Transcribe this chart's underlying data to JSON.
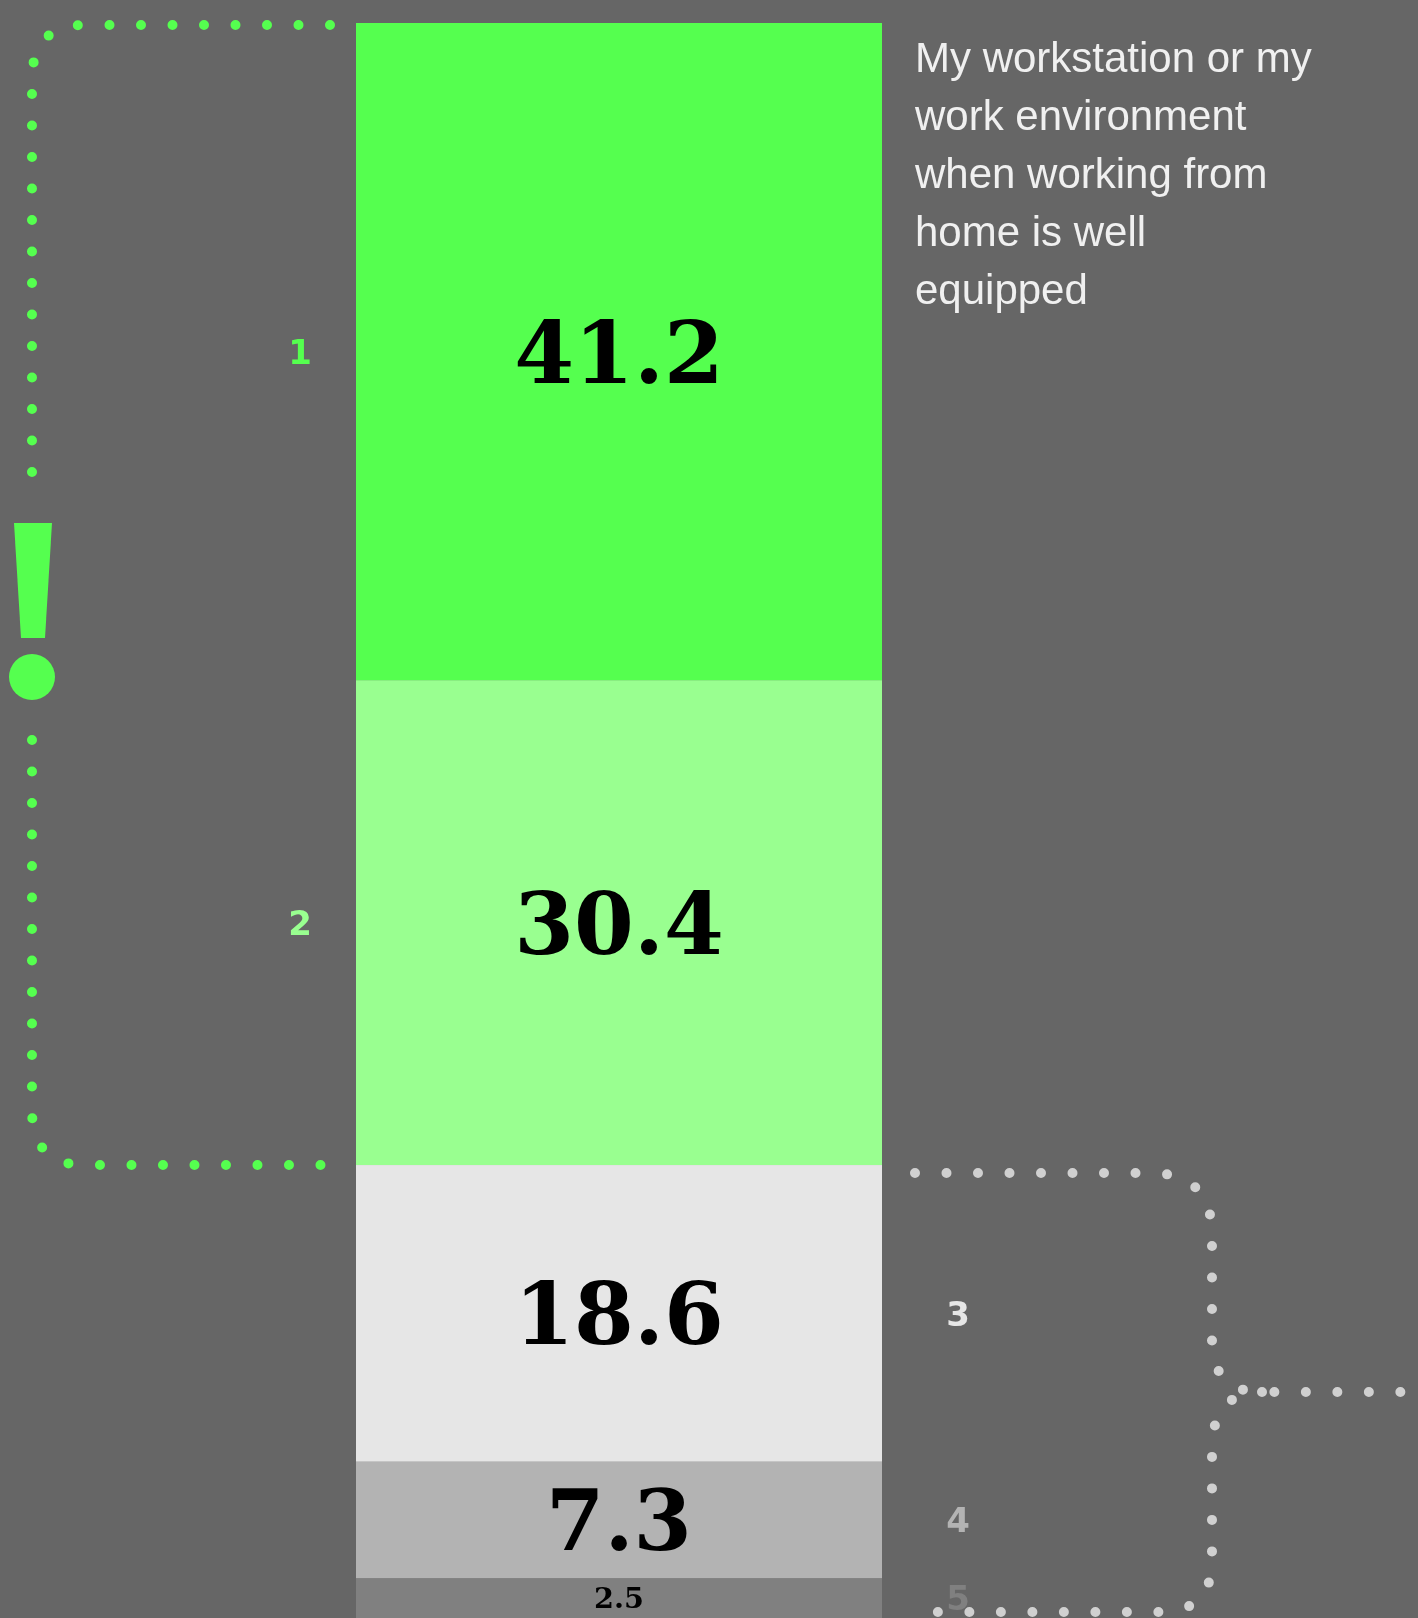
{
  "chart_data": {
    "type": "bar",
    "stacked": true,
    "title": "My workstation or my work environment when working from home is well equipped",
    "categories": [
      null
    ],
    "ylim": [
      0,
      100
    ],
    "data_labels": true,
    "series": [
      {
        "name": "5",
        "color": "#808080",
        "values": [
          2.5
        ]
      },
      {
        "name": "4",
        "color": "#b3b3b3",
        "values": [
          7.3
        ]
      },
      {
        "name": "3",
        "color": "#e6e6e6",
        "values": [
          18.6
        ]
      },
      {
        "name": "2",
        "color": "#99ff90",
        "values": [
          30.4
        ]
      },
      {
        "name": "1",
        "color": "#55ff4f",
        "values": [
          41.2
        ]
      }
    ]
  }
}
